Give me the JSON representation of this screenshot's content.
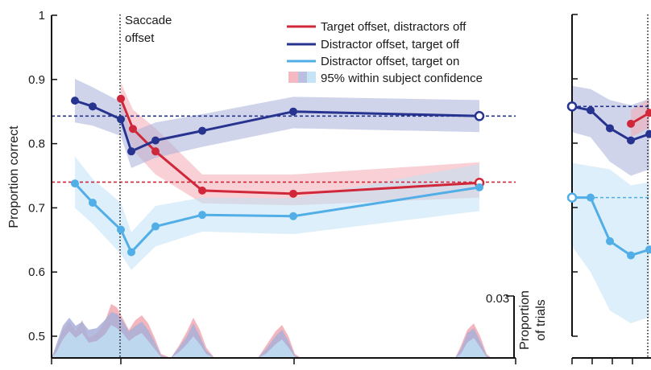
{
  "chart_data": [
    {
      "type": "line",
      "panel": "left",
      "ylabel": "Proportion correct",
      "ylim": [
        0.47,
        1.0
      ],
      "yticks": [
        {
          "value": 0.5,
          "label": "0.5"
        },
        {
          "value": 0.6,
          "label": "0.6"
        },
        {
          "value": 0.7,
          "label": "0.7"
        },
        {
          "value": 0.8,
          "label": "0.8"
        },
        {
          "value": 0.9,
          "label": "0.9"
        },
        {
          "value": 1.0,
          "label": "1"
        }
      ],
      "xlim": [
        0,
        100
      ],
      "xticks": [
        4,
        31,
        57,
        83
      ],
      "saccade_line": {
        "x": 27,
        "label_line1": "Saccade",
        "label_line2": "offset"
      },
      "legend": {
        "position": "top-right",
        "entries": [
          {
            "label": "Target offset, distractors off",
            "color": "#d0283a"
          },
          {
            "label": "Distractor offset, target off",
            "color": "#26338f"
          },
          {
            "label": "Distractor offset, target on",
            "color": "#52aee6"
          },
          {
            "label": "95% within subject confidence",
            "color": "band"
          }
        ]
      },
      "reference_lines": [
        {
          "y": 0.843,
          "color": "#26338f"
        },
        {
          "y": 0.74,
          "color": "#d0283a"
        }
      ],
      "series": [
        {
          "color": "#d0283a",
          "band_color": "#f2a9b2",
          "points": [
            [
              27,
              0.87
            ],
            [
              30,
              0.823
            ],
            [
              41,
              0.788
            ],
            [
              61,
              0.727
            ],
            [
              98,
              0.722
            ],
            [
              100,
              0.739
            ]
          ],
          "x": [
            27,
            30,
            41,
            61,
            98,
            100
          ],
          "y": [
            0.87,
            0.823,
            0.788,
            0.727,
            0.722,
            0.739
          ],
          "band_lower": [
            0.845,
            0.79,
            0.752,
            0.707,
            0.704,
            0.716
          ],
          "band_upper": [
            0.895,
            0.853,
            0.824,
            0.752,
            0.752,
            0.771
          ],
          "open_last": true
        },
        {
          "color": "#26338f",
          "band_color": "#a9b0d9",
          "x": [
            5,
            9,
            26,
            31,
            38,
            50,
            60,
            100
          ],
          "y": [
            0.867,
            0.858,
            0.838,
            0.788,
            0.805,
            0.82,
            0.85,
            0.843
          ],
          "band_lower": [
            0.833,
            0.828,
            0.812,
            0.762,
            0.778,
            0.795,
            0.824,
            0.818
          ],
          "band_upper": [
            0.901,
            0.888,
            0.865,
            0.818,
            0.833,
            0.846,
            0.873,
            0.868
          ],
          "open_last": true
        },
        {
          "color": "#52aee6",
          "band_color": "#bfe1f5",
          "x": [
            5,
            9,
            26,
            31,
            38,
            50,
            60,
            100
          ],
          "y": [
            0.738,
            0.708,
            0.666,
            0.631,
            0.671,
            0.689,
            0.687,
            0.732
          ],
          "band_lower": [
            0.7,
            0.675,
            0.628,
            0.603,
            0.64,
            0.663,
            0.659,
            0.695
          ],
          "band_upper": [
            0.78,
            0.745,
            0.708,
            0.662,
            0.703,
            0.716,
            0.715,
            0.768
          ],
          "open_last": false
        }
      ],
      "histogram": {
        "label_line1": "Proportion",
        "label_line2": "of trials",
        "max_label": "0.03",
        "ylim": [
          0,
          0.03
        ]
      }
    },
    {
      "type": "line",
      "panel": "right",
      "reference_lines": [
        {
          "y": 0.858,
          "color": "#26338f"
        },
        {
          "y": 0.716,
          "color": "#52aee6"
        }
      ],
      "series": [
        {
          "color": "#26338f",
          "band_color": "#a9b0d9",
          "x": [
            0,
            1,
            2,
            3,
            4
          ],
          "y": [
            0.858,
            0.852,
            0.824,
            0.805,
            0.815
          ],
          "band_lower": [
            0.818,
            0.81,
            0.772,
            0.75,
            0.76
          ],
          "band_upper": [
            0.89,
            0.885,
            0.868,
            0.86,
            0.87
          ]
        },
        {
          "color": "#d0283a",
          "band_color": "#f2a9b2",
          "x": [
            3,
            4
          ],
          "y": [
            0.831,
            0.848
          ],
          "band_lower": [
            0.81,
            0.825
          ],
          "band_upper": [
            0.852,
            0.87
          ]
        },
        {
          "color": "#52aee6",
          "band_color": "#bfe1f5",
          "x": [
            0,
            1,
            2,
            3,
            4
          ],
          "y": [
            0.716,
            0.716,
            0.648,
            0.626,
            0.635
          ],
          "band_lower": [
            0.64,
            0.6,
            0.54,
            0.52,
            0.53
          ],
          "band_upper": [
            0.77,
            0.765,
            0.76,
            0.735,
            0.74
          ]
        }
      ]
    }
  ]
}
